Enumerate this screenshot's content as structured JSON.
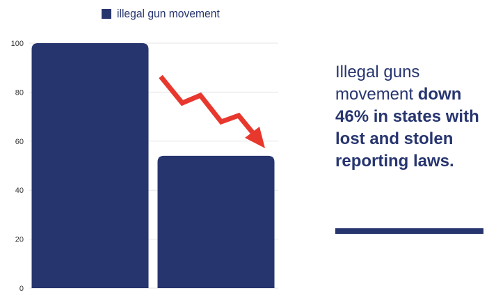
{
  "colors": {
    "bar": "#27356f",
    "arrow": "#e8382e",
    "text": "#27356f",
    "grid": "#e6e6e6"
  },
  "legend": {
    "label": "illegal gun movement"
  },
  "headline": {
    "part1": "Illegal guns movement ",
    "bold": "down 46% in states with lost and stolen reporting laws."
  },
  "icons": {
    "trend_arrow": "down-trend-arrow-icon"
  },
  "chart_data": {
    "type": "bar",
    "categories": [
      "",
      ""
    ],
    "series": [
      {
        "name": "illegal gun movement",
        "values": [
          100,
          54
        ]
      }
    ],
    "xlabel": "",
    "ylabel": "",
    "ylim": [
      0,
      100
    ],
    "yticks": [
      0,
      20,
      40,
      60,
      80,
      100
    ],
    "grid": true,
    "legend": "top-center"
  }
}
